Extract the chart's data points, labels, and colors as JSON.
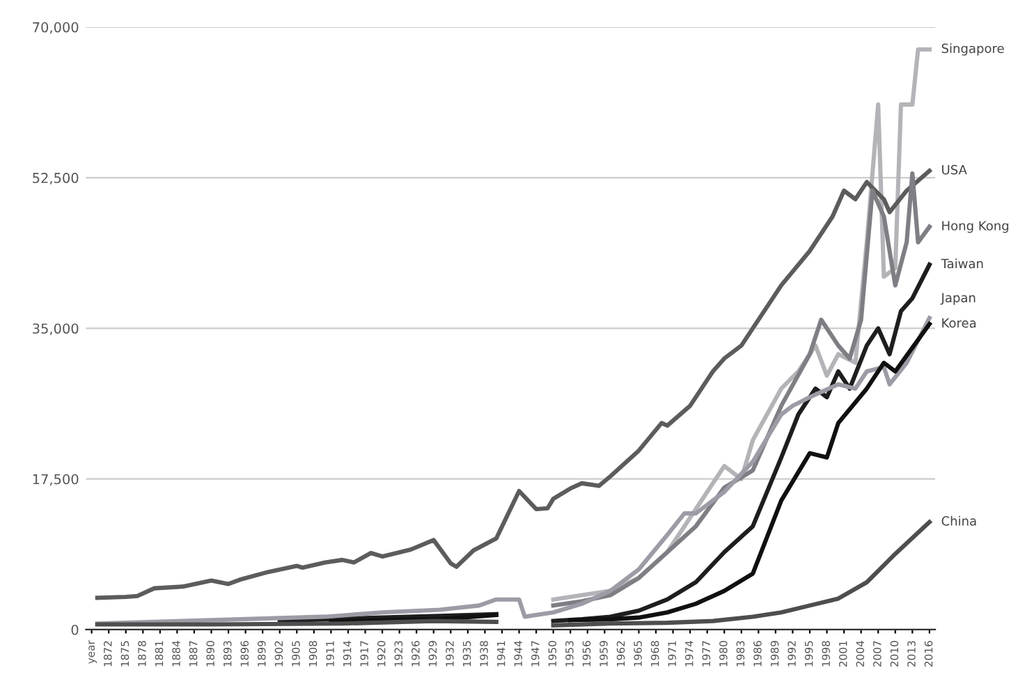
{
  "chart_data": {
    "type": "line",
    "line_style": "solid",
    "marker": "none",
    "grid": "y",
    "legend": false,
    "xlim": [
      1868,
      2017
    ],
    "xticks": [
      {
        "value": 1869,
        "label": "year"
      },
      1872,
      1875,
      1878,
      1881,
      1884,
      1887,
      1890,
      1893,
      1896,
      1899,
      1902,
      1905,
      1908,
      1911,
      1914,
      1917,
      1920,
      1923,
      1926,
      1929,
      1932,
      1935,
      1938,
      1941,
      1944,
      1947,
      1950,
      1953,
      1956,
      1959,
      1962,
      1965,
      1968,
      1971,
      1974,
      1977,
      1980,
      1983,
      1986,
      1989,
      1992,
      1995,
      1998,
      2001,
      2004,
      2007,
      2010,
      2013,
      2016
    ],
    "ylim": [
      0,
      70000
    ],
    "yticks": [
      0,
      {
        "value": 17500,
        "label": "17,500"
      },
      {
        "value": 35000,
        "label": "35,000"
      },
      {
        "value": 52500,
        "label": "52,500"
      },
      {
        "value": 70000,
        "label": "70,000"
      }
    ],
    "series": [
      {
        "name": "Singapore",
        "color": "#b4b4b8",
        "x": [
          1950,
          1955,
          1960,
          1965,
          1970,
          1975,
          1980,
          1983,
          1985,
          1990,
          1993,
          1996,
          1998,
          2000,
          2003,
          2005,
          2007,
          2008,
          2010,
          2011,
          2013,
          2014,
          2016
        ],
        "values": [
          3500,
          4000,
          4500,
          6000,
          9000,
          14000,
          19000,
          17500,
          22000,
          28000,
          30000,
          33000,
          29500,
          32000,
          31000,
          45000,
          61000,
          41000,
          42000,
          61000,
          61000,
          67400,
          67400
        ]
      },
      {
        "name": "USA",
        "color": "#5c5c5c",
        "x": [
          1870,
          1875,
          1877,
          1880,
          1885,
          1890,
          1893,
          1895,
          1900,
          1905,
          1906,
          1910,
          1913,
          1915,
          1918,
          1920,
          1925,
          1929,
          1932,
          1933,
          1936,
          1940,
          1944,
          1947,
          1949,
          1950,
          1953,
          1955,
          1958,
          1960,
          1965,
          1969,
          1970,
          1974,
          1978,
          1980,
          1983,
          1985,
          1990,
          1995,
          1999,
          2001,
          2003,
          2005,
          2008,
          2009,
          2012,
          2016
        ],
        "values": [
          3700,
          3800,
          3900,
          4800,
          5000,
          5700,
          5300,
          5800,
          6700,
          7400,
          7200,
          7800,
          8100,
          7800,
          8900,
          8500,
          9300,
          10400,
          7700,
          7300,
          9200,
          10600,
          16100,
          14000,
          14100,
          15200,
          16400,
          17000,
          16700,
          17800,
          20800,
          24000,
          23700,
          26000,
          30000,
          31500,
          33000,
          35000,
          40000,
          44000,
          48000,
          51000,
          50000,
          52000,
          50000,
          48500,
          51000,
          53300
        ]
      },
      {
        "name": "Hong Kong",
        "color": "#7e7e84",
        "x": [
          1950,
          1955,
          1960,
          1965,
          1970,
          1975,
          1980,
          1985,
          1990,
          1995,
          1997,
          2000,
          2002,
          2004,
          2006,
          2008,
          2010,
          2012,
          2013,
          2014,
          2016
        ],
        "values": [
          2800,
          3300,
          4000,
          6000,
          9000,
          12000,
          16500,
          18500,
          26000,
          32000,
          36000,
          33000,
          31500,
          36000,
          51000,
          48000,
          40000,
          45000,
          53000,
          45000,
          46800
        ]
      },
      {
        "name": "Taiwan",
        "color": "#1e1e1e",
        "x": [
          1902,
          1910,
          1920,
          1930,
          1940,
          1941,
          1950,
          1955,
          1960,
          1965,
          1970,
          1975,
          1980,
          1985,
          1990,
          1993,
          1996,
          1998,
          2000,
          2002,
          2005,
          2007,
          2009,
          2011,
          2013,
          2016
        ],
        "values": [
          1000,
          1200,
          1400,
          1600,
          1800,
          null,
          1000,
          1200,
          1500,
          2200,
          3500,
          5500,
          9000,
          12000,
          20000,
          25000,
          28000,
          27000,
          30000,
          28000,
          33000,
          35000,
          32000,
          37000,
          38500,
          42400
        ]
      },
      {
        "name": "Japan",
        "color": "#9c9ca6",
        "x": [
          1870,
          1880,
          1890,
          1900,
          1910,
          1920,
          1930,
          1937,
          1940,
          1944,
          1945,
          1950,
          1955,
          1960,
          1965,
          1970,
          1973,
          1975,
          1980,
          1985,
          1990,
          1992,
          1995,
          2000,
          2003,
          2005,
          2008,
          2009,
          2012,
          2016
        ],
        "values": [
          700,
          900,
          1100,
          1300,
          1500,
          2000,
          2300,
          2800,
          3500,
          3500,
          1500,
          2000,
          3000,
          4500,
          7000,
          11000,
          13500,
          13500,
          16000,
          19500,
          25000,
          26000,
          27000,
          28500,
          28000,
          30000,
          30500,
          28500,
          31000,
          36200
        ]
      },
      {
        "name": "Korea",
        "color": "#101010",
        "x": [
          1911,
          1920,
          1930,
          1940,
          1941,
          1953,
          1960,
          1965,
          1970,
          1975,
          1980,
          1985,
          1990,
          1995,
          1998,
          2000,
          2005,
          2008,
          2010,
          2016
        ],
        "values": [
          900,
          1100,
          1200,
          1700,
          null,
          1100,
          1200,
          1400,
          2000,
          3000,
          4500,
          6500,
          15000,
          20500,
          20000,
          24000,
          28000,
          31000,
          30000,
          35500
        ]
      },
      {
        "name": "China",
        "color": "#4e4e4e",
        "x": [
          1870,
          1890,
          1913,
          1929,
          1940,
          1941,
          1950,
          1960,
          1970,
          1978,
          1985,
          1990,
          1995,
          2000,
          2005,
          2010,
          2016
        ],
        "values": [
          600,
          600,
          700,
          1000,
          900,
          null,
          500,
          700,
          800,
          1000,
          1500,
          2000,
          2800,
          3600,
          5500,
          8800,
          12500
        ]
      }
    ]
  }
}
